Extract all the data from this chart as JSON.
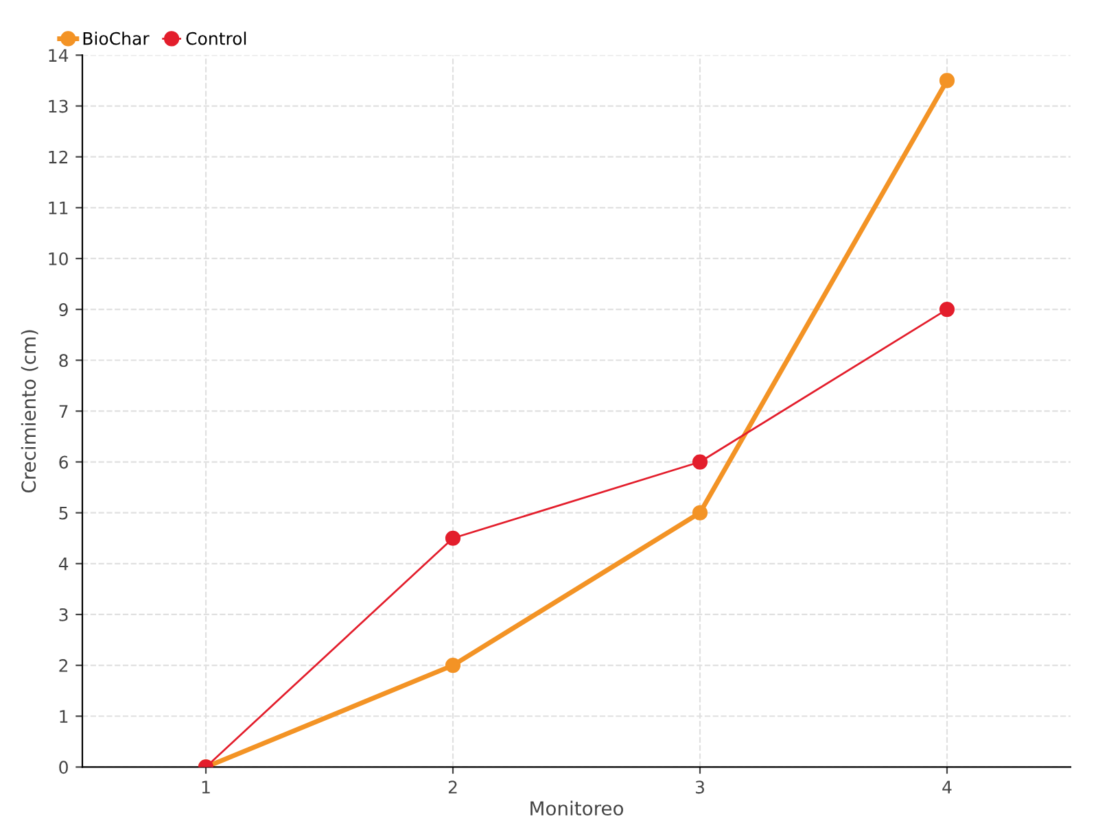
{
  "chart_data": {
    "type": "line",
    "xlabel": "Monitoreo",
    "ylabel": "Crecimiento (cm)",
    "x": [
      1,
      2,
      3,
      4
    ],
    "xlim": [
      0.5,
      4.5
    ],
    "xticks": [
      1,
      2,
      3,
      4
    ],
    "ylim": [
      0,
      14
    ],
    "yticks": [
      0,
      1,
      2,
      3,
      4,
      5,
      6,
      7,
      8,
      9,
      10,
      11,
      12,
      13,
      14
    ],
    "series": [
      {
        "name": "BioChar",
        "color": "#f39325",
        "values": [
          0,
          2,
          5,
          13.5
        ]
      },
      {
        "name": "Control",
        "color": "#e31e2c",
        "values": [
          0,
          4.5,
          6,
          9
        ]
      }
    ],
    "marker": "circle",
    "line_style": "solid",
    "grid": true,
    "legend": "top left"
  }
}
